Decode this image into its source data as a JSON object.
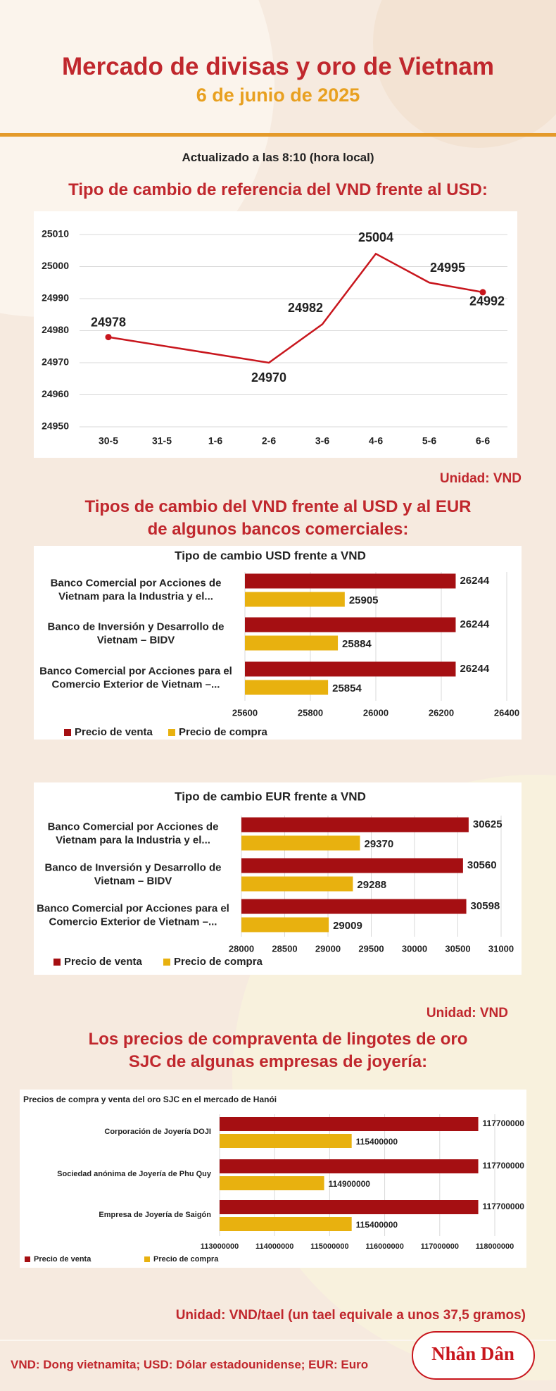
{
  "header": {
    "title": "Mercado de divisas y oro de Vietnam",
    "date": "6 de junio de 2025"
  },
  "updated": "Actualizado a las 8:10 (hora local)",
  "sections": [
    {
      "heading": "Tipo de cambio de referencia del VND frente al USD:",
      "unit": "Unidad: VND"
    },
    {
      "heading": "Tipos de cambio del VND frente al USD y al EUR de algunos bancos comerciales:",
      "unit": "Unidad: VND"
    },
    {
      "heading": "Los precios de compraventa de lingotes de oro SJC de algunas empresas de joyería:",
      "unit": "Unidad: VND/tael (un tael equivale a unos 37,5 gramos)"
    }
  ],
  "chart_data": [
    {
      "type": "line",
      "categories": [
        "30-5",
        "31-5",
        "1-6",
        "2-6",
        "3-6",
        "4-6",
        "5-6",
        "6-6"
      ],
      "values": [
        24978,
        null,
        null,
        24970,
        24982,
        25004,
        24995,
        24992
      ],
      "color": "#c8161d",
      "ylim": [
        24950,
        25010
      ],
      "yticks": [
        24950,
        24960,
        24970,
        24980,
        24990,
        25000,
        25010
      ],
      "grid": true
    },
    {
      "type": "bar",
      "horizontal": true,
      "title": "Tipo de cambio USD frente a VND",
      "categories": [
        "Banco Comercial por Acciones de Vietnam para la Industria y el...",
        "Banco de Inversión y Desarrollo de Vietnam – BIDV",
        "Banco Comercial por Acciones para el Comercio Exterior de Vietnam –..."
      ],
      "series": [
        {
          "name": "Precio de venta",
          "color": "#a50f12",
          "values": [
            26244,
            26244,
            26244
          ]
        },
        {
          "name": "Precio de compra",
          "color": "#e8b10f",
          "values": [
            25905,
            25884,
            25854
          ]
        }
      ],
      "xlim": [
        25600,
        26400
      ],
      "xticks": [
        25600,
        25800,
        26000,
        26200,
        26400
      ],
      "grid": true
    },
    {
      "type": "bar",
      "horizontal": true,
      "title": "Tipo de cambio EUR frente a VND",
      "categories": [
        "Banco Comercial por Acciones de Vietnam para la Industria y el...",
        "Banco de Inversión y Desarrollo de Vietnam – BIDV",
        "Banco Comercial por Acciones para el Comercio Exterior de Vietnam –..."
      ],
      "series": [
        {
          "name": "Precio de venta",
          "color": "#a50f12",
          "values": [
            30625,
            30560,
            30598
          ]
        },
        {
          "name": "Precio de compra",
          "color": "#e8b10f",
          "values": [
            29370,
            29288,
            29009
          ]
        }
      ],
      "xlim": [
        28000,
        31000
      ],
      "xticks": [
        28000,
        28500,
        29000,
        29500,
        30000,
        30500,
        31000
      ],
      "grid": true
    },
    {
      "type": "bar",
      "horizontal": true,
      "title": "Precios de compra y venta del oro SJC en el mercado de Hanói",
      "categories": [
        "Corporación de Joyería DOJI",
        "Sociedad anónima de Joyería de Phu Quy",
        "Empresa de Joyería de Saigón"
      ],
      "series": [
        {
          "name": "Precio de venta",
          "color": "#a50f12",
          "values": [
            117700000,
            117700000,
            117700000
          ]
        },
        {
          "name": "Precio de compra",
          "color": "#e8b10f",
          "values": [
            115400000,
            114900000,
            115400000
          ]
        }
      ],
      "xlim": [
        113000000,
        118000000
      ],
      "xticks": [
        113000000,
        114000000,
        115000000,
        116000000,
        117000000,
        118000000
      ],
      "grid": true
    }
  ],
  "footer": {
    "note": "VND: Dong vietnamita; USD: Dólar estadounidense; EUR: Euro",
    "logo": "Nhân Dân"
  }
}
